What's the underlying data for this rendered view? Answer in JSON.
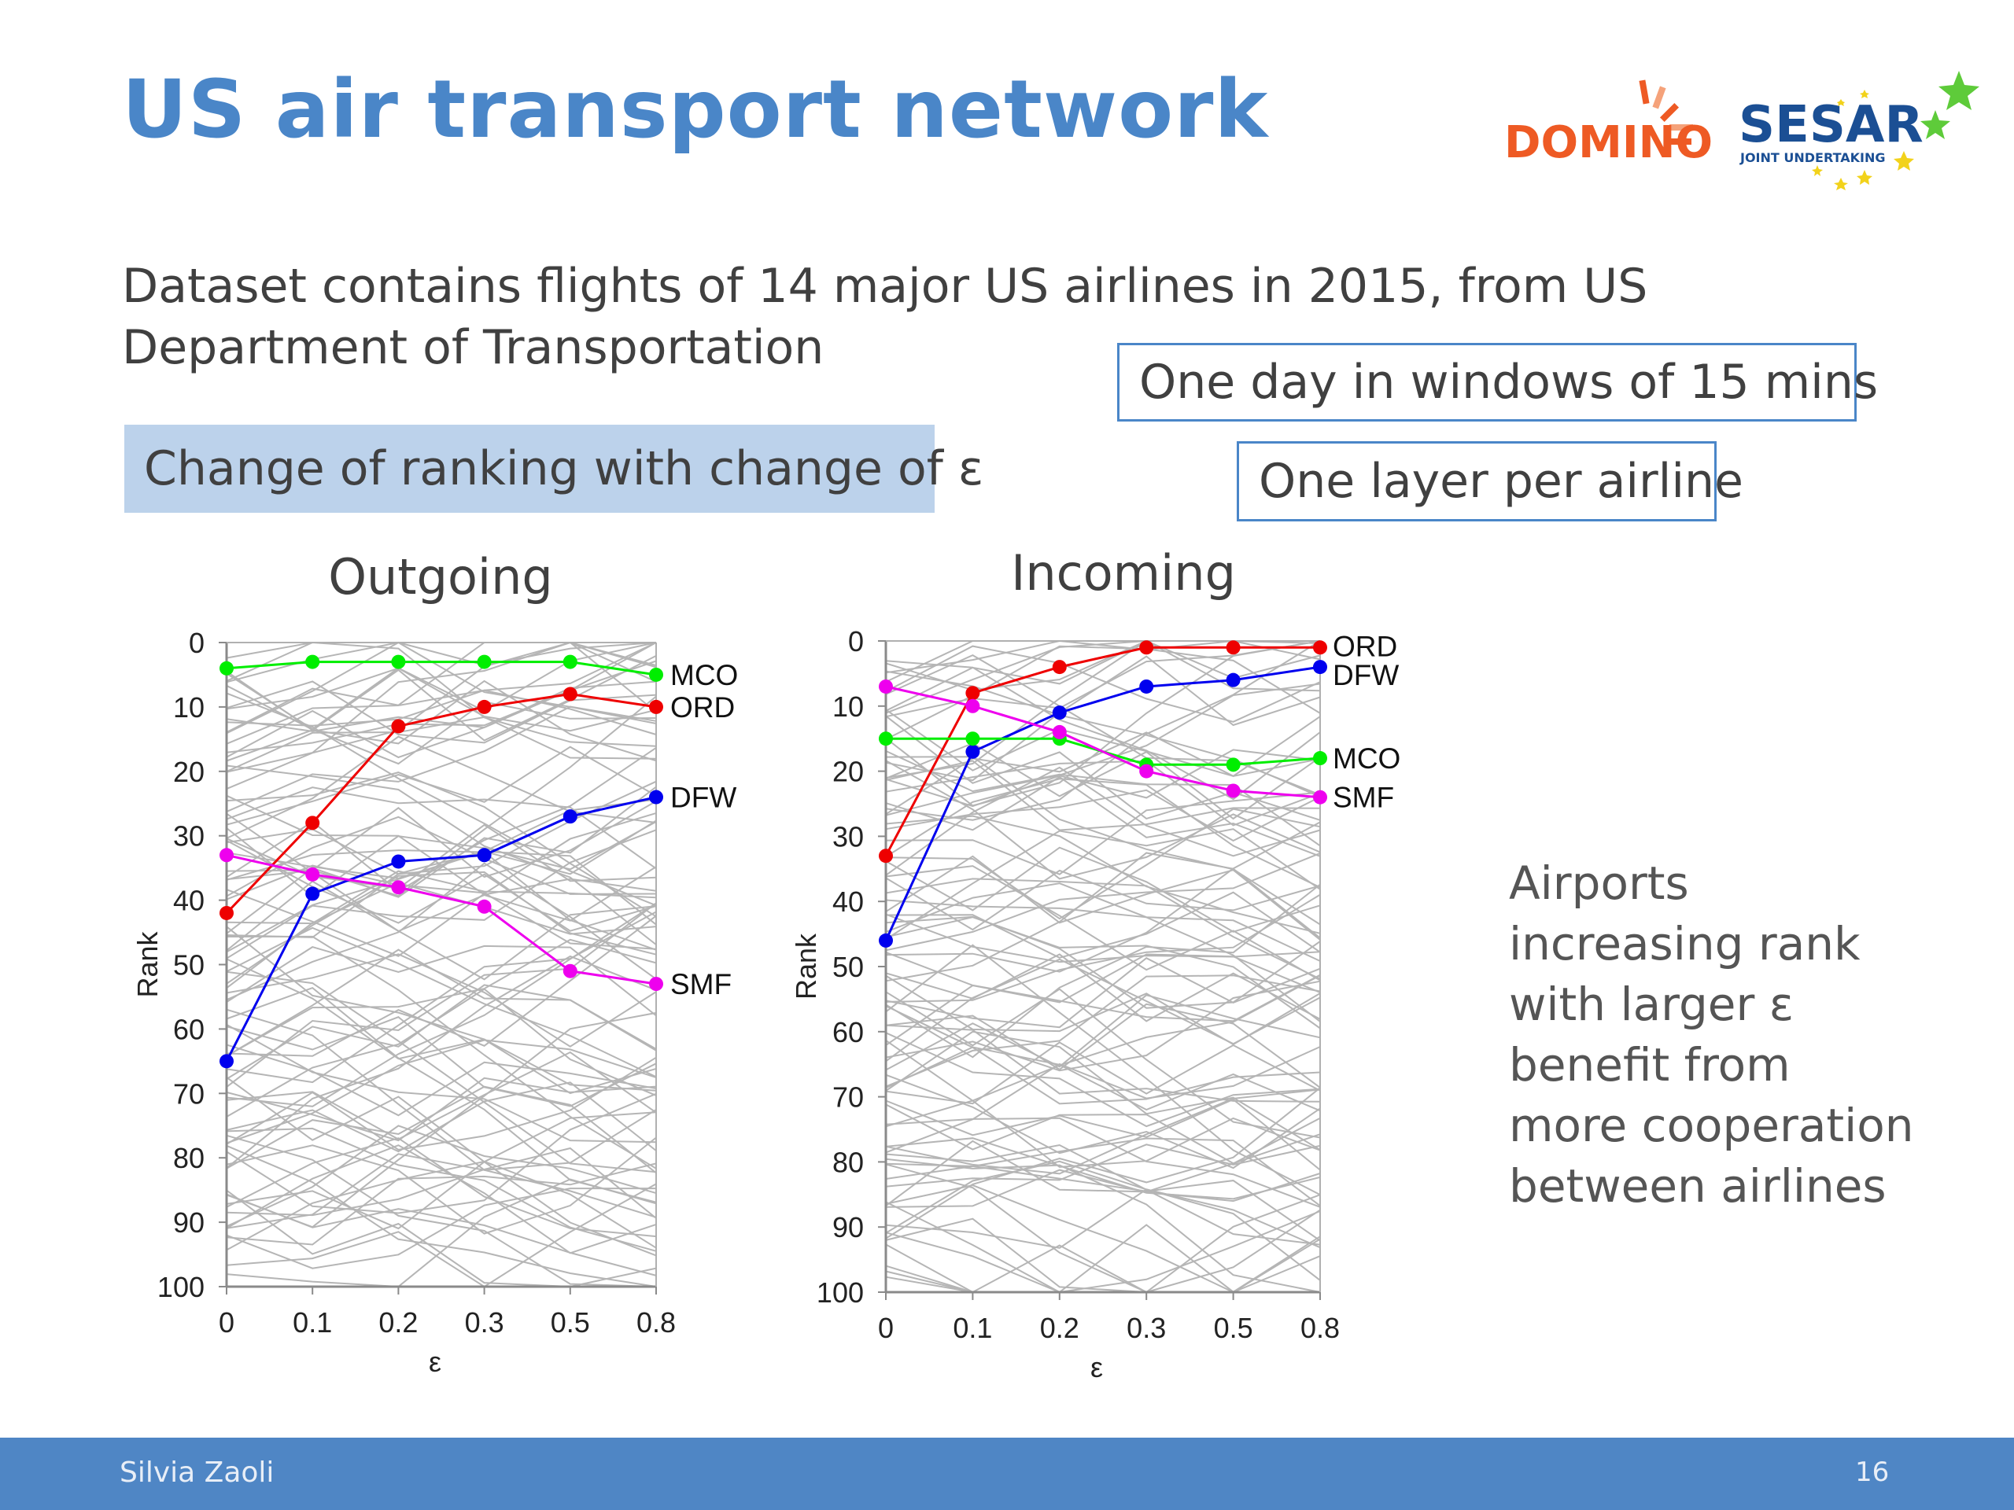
{
  "slide": {
    "title": "US air transport network",
    "intro": "Dataset contains flights of 14 major US airlines in 2015, from US Department of Transportation",
    "box_window": "One day in windows of 15 mins",
    "box_layer": "One layer per airline",
    "box_change": "Change of ranking with change of ε",
    "side_text": "Airports increasing rank with larger ε benefit from more cooperation between airlines",
    "footer_author": "Silvia Zaoli",
    "footer_page": "16",
    "logo_domino": "DOMINO",
    "logo_sesar": "SESAR",
    "logo_sesar_sub": "JOINT UNDERTAKING"
  },
  "colors": {
    "title": "#4a86c8",
    "box_border": "#4a86c8",
    "box_fill": "#bcd2eb",
    "footer": "#4f86c5",
    "domino": "#ee5a24",
    "sesar": "#1b4f94",
    "star_green": "#5ecb3a",
    "star_yellow": "#f2d21b",
    "background_lines": "#b5b5b5"
  },
  "chart_data": [
    {
      "type": "line",
      "title": "Outgoing",
      "xlabel": "ε",
      "ylabel": "Rank",
      "categories": [
        "0",
        "0.1",
        "0.2",
        "0.3",
        "0.5",
        "0.8"
      ],
      "ylim": [
        0,
        100
      ],
      "y_inverted": true,
      "yticks": [
        0,
        10,
        20,
        30,
        40,
        50,
        60,
        70,
        80,
        90,
        100
      ],
      "grid": false,
      "series": [
        {
          "name": "MCO",
          "color": "#00ee00",
          "values": [
            4,
            3,
            3,
            3,
            3,
            5
          ]
        },
        {
          "name": "ORD",
          "color": "#ee0000",
          "values": [
            42,
            28,
            13,
            10,
            8,
            10
          ]
        },
        {
          "name": "DFW",
          "color": "#0000ee",
          "values": [
            65,
            39,
            34,
            33,
            27,
            24
          ]
        },
        {
          "name": "SMF",
          "color": "#ee00ee",
          "values": [
            33,
            36,
            38,
            41,
            51,
            53
          ]
        }
      ],
      "background_series_count": 96,
      "background_series_color": "#b5b5b5"
    },
    {
      "type": "line",
      "title": "Incoming",
      "xlabel": "ε",
      "ylabel": "Rank",
      "categories": [
        "0",
        "0.1",
        "0.2",
        "0.3",
        "0.5",
        "0.8"
      ],
      "ylim": [
        0,
        100
      ],
      "y_inverted": true,
      "yticks": [
        0,
        10,
        20,
        30,
        40,
        50,
        60,
        70,
        80,
        90,
        100
      ],
      "grid": false,
      "series": [
        {
          "name": "ORD",
          "color": "#ee0000",
          "values": [
            33,
            8,
            4,
            1,
            1,
            1
          ]
        },
        {
          "name": "DFW",
          "color": "#0000ee",
          "values": [
            46,
            17,
            11,
            7,
            6,
            4
          ]
        },
        {
          "name": "MCO",
          "color": "#00ee00",
          "values": [
            15,
            15,
            15,
            19,
            19,
            18
          ]
        },
        {
          "name": "SMF",
          "color": "#ee00ee",
          "values": [
            7,
            10,
            14,
            20,
            23,
            24
          ]
        }
      ],
      "background_series_count": 96,
      "background_series_color": "#b5b5b5"
    }
  ]
}
